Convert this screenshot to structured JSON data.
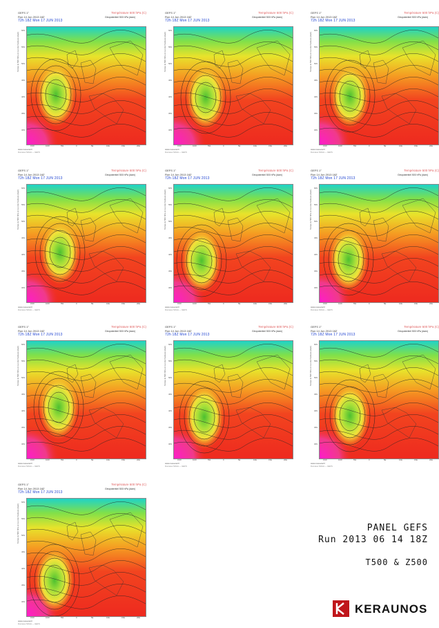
{
  "panel_header": {
    "model": "GEFS 1°",
    "run": "Run 14 Jun 2013 18Z",
    "valid": "72h  18Z  Mon 17 JUN 2013",
    "field": "Température 500 hPa (C)",
    "geo": "Géopotentiel 500 hPa (dam)",
    "side_label": "Tempe le 500 hPa et ruoi de l'isobare (dam)",
    "footer": "www.meteociel.fr",
    "footer2": "Données NOAA — GEFS"
  },
  "lat_labels": [
    "60N",
    "55N",
    "50N",
    "45N",
    "40N",
    "35N",
    "30N"
  ],
  "lon_labels": [
    "15W",
    "10W",
    "5W",
    "0",
    "5E",
    "10E",
    "15E",
    "20E"
  ],
  "panels": [
    {
      "id": 1,
      "low": [
        42,
        98
      ]
    },
    {
      "id": 2,
      "low": [
        46,
        102
      ]
    },
    {
      "id": 3,
      "low": [
        44,
        100
      ]
    },
    {
      "id": 4,
      "low": [
        48,
        98
      ]
    },
    {
      "id": 5,
      "low": [
        40,
        110
      ]
    },
    {
      "id": 6,
      "low": [
        42,
        108
      ]
    },
    {
      "id": 7,
      "low": [
        46,
        96
      ]
    },
    {
      "id": 8,
      "low": [
        44,
        110
      ]
    },
    {
      "id": 9,
      "low": [
        44,
        108
      ]
    },
    {
      "id": 10,
      "low": [
        40,
        118
      ]
    }
  ],
  "title": {
    "line1": "PANEL GEFS",
    "line2": "Run 2013 06 14 18Z",
    "line3": "T500 & Z500"
  },
  "logo": {
    "text": "KERAUNOS",
    "color": "#c0161b"
  }
}
